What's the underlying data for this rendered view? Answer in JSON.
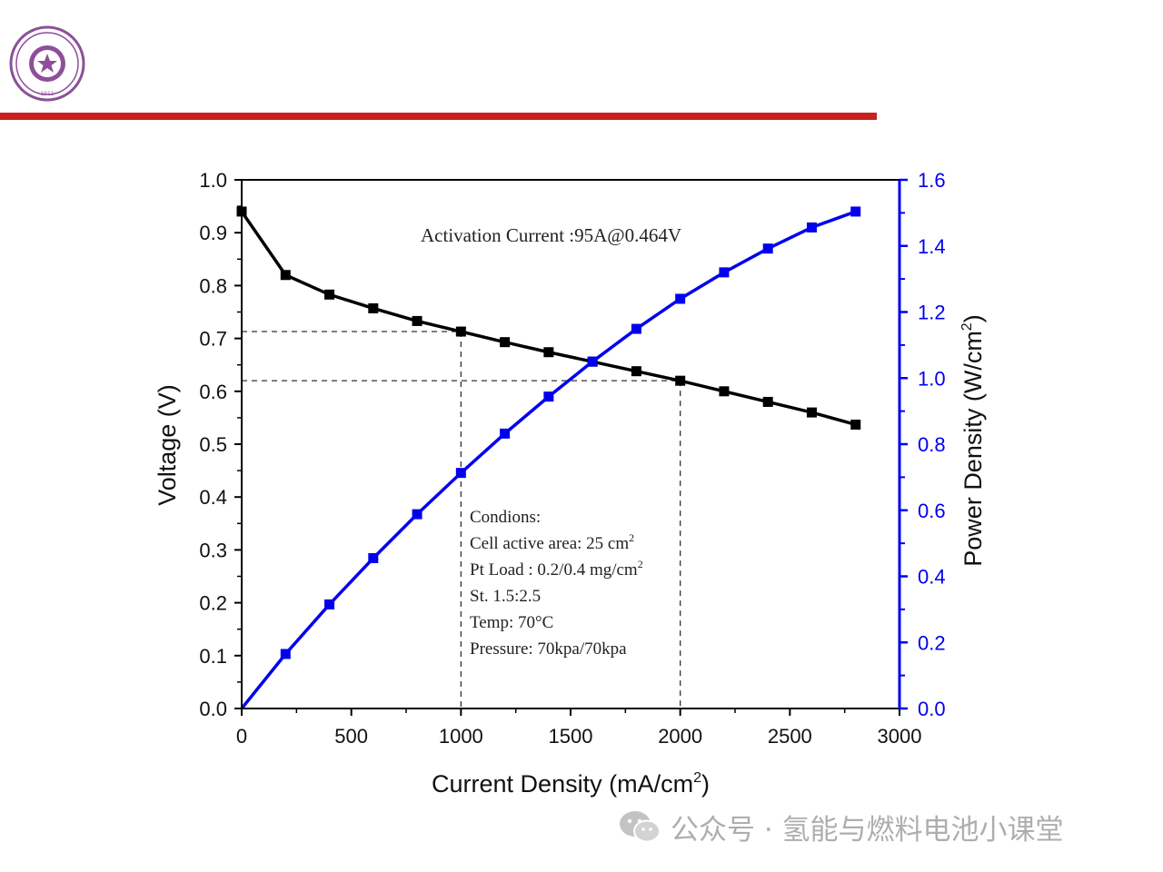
{
  "header": {
    "logo_icon": "university-seal-icon",
    "logo_text": "清华大学 TSINGHUA UNIVERSITY 1911",
    "rule_color": "#cc1f1f"
  },
  "watermark": {
    "icon": "wechat-icon",
    "text": "公众号 · 氢能与燃料电池小课堂"
  },
  "chart_data": {
    "type": "line",
    "xlabel": "Current Density (mA/cm",
    "xlabel_sup": "2",
    "xlabel_end": ")",
    "ylabel_left": "Voltage (V)",
    "ylabel_right": "Power Density (W/cm",
    "ylabel_right_sup": "2",
    "ylabel_right_end": ")",
    "xlim": [
      0,
      3000
    ],
    "ylim_left": [
      0,
      1.0
    ],
    "ylim_right": [
      0,
      1.6
    ],
    "x_ticks": [
      0,
      500,
      1000,
      1500,
      2000,
      2500,
      3000
    ],
    "y_left_ticks": [
      "0.0",
      "0.1",
      "0.2",
      "0.3",
      "0.4",
      "0.5",
      "0.6",
      "0.7",
      "0.8",
      "0.9",
      "1.0"
    ],
    "y_right_ticks": [
      "0.0",
      "0.2",
      "0.4",
      "0.6",
      "0.8",
      "1.0",
      "1.2",
      "1.4",
      "1.6"
    ],
    "x": [
      0,
      200,
      400,
      600,
      800,
      1000,
      1200,
      1400,
      1600,
      1800,
      2000,
      2200,
      2400,
      2600,
      2800
    ],
    "series": [
      {
        "axis": "left",
        "color": "#000000",
        "marker": "square",
        "values": [
          0.94,
          0.82,
          0.783,
          0.757,
          0.733,
          0.713,
          0.693,
          0.674,
          0.656,
          0.638,
          0.62,
          0.6,
          0.58,
          0.56,
          0.537
        ]
      },
      {
        "axis": "right",
        "color": "#0000ee",
        "marker": "square",
        "values": [
          0.0,
          0.165,
          0.315,
          0.455,
          0.588,
          0.713,
          0.832,
          0.944,
          1.05,
          1.149,
          1.24,
          1.32,
          1.392,
          1.456,
          1.504
        ]
      }
    ],
    "reference_lines": [
      {
        "x": 1000,
        "y": 0.713
      },
      {
        "x": 2000,
        "y": 0.62
      }
    ],
    "annotation_top": "Activation Current :95A@0.464V",
    "conditions": [
      {
        "text": "Condions:",
        "sup": ""
      },
      {
        "text": "Cell active area: 25 cm",
        "sup": "2"
      },
      {
        "text": "Pt Load : 0.2/0.4 mg/cm",
        "sup": "2"
      },
      {
        "text": "St.  1.5:2.5",
        "sup": ""
      },
      {
        "text": "Temp: 70°C",
        "sup": ""
      },
      {
        "text": "Pressure: 70kpa/70kpa",
        "sup": ""
      }
    ],
    "legend": "none",
    "grid": false
  }
}
